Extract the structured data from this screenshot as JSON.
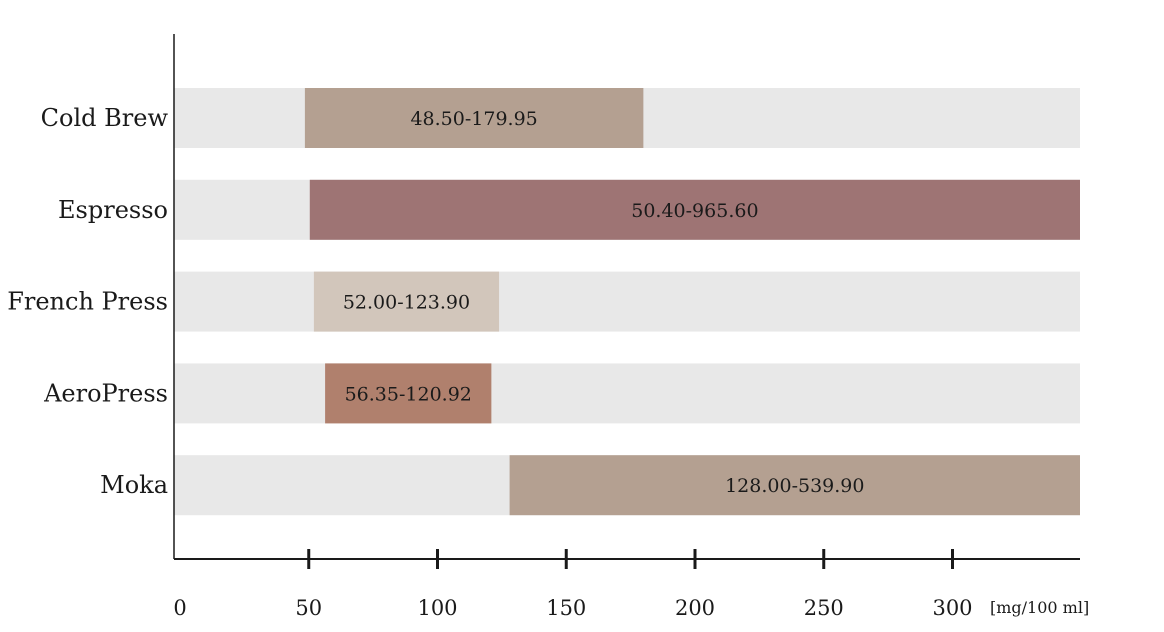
{
  "chart_data": {
    "type": "bar",
    "orientation": "horizontal",
    "categories": [
      "Cold Brew",
      "Espresso",
      "French Press",
      "AeroPress",
      "Moka"
    ],
    "ranges": [
      {
        "low": 48.5,
        "high": 179.95,
        "label": "48.50-179.95",
        "color": "#b4a091"
      },
      {
        "low": 50.4,
        "high": 965.6,
        "label": "50.40-965.60",
        "color": "#9e7474"
      },
      {
        "low": 52.0,
        "high": 123.9,
        "label": "52.00-123.90",
        "color": "#d2c6bb"
      },
      {
        "low": 56.35,
        "high": 120.92,
        "label": "56.35-120.92",
        "color": "#b0806d"
      },
      {
        "low": 128.0,
        "high": 539.9,
        "label": "128.00-539.90",
        "color": "#b4a091"
      }
    ],
    "x_ticks": [
      0,
      50,
      100,
      150,
      200,
      250,
      300
    ],
    "x_tick_labels": [
      "0",
      "50",
      "100",
      "150",
      "200",
      "250",
      "300"
    ],
    "x_unit": "[mg/100 ml]",
    "xlim": [
      0,
      352
    ],
    "background_track_color": "#e8e8e8",
    "grid": false,
    "legend": "none"
  }
}
